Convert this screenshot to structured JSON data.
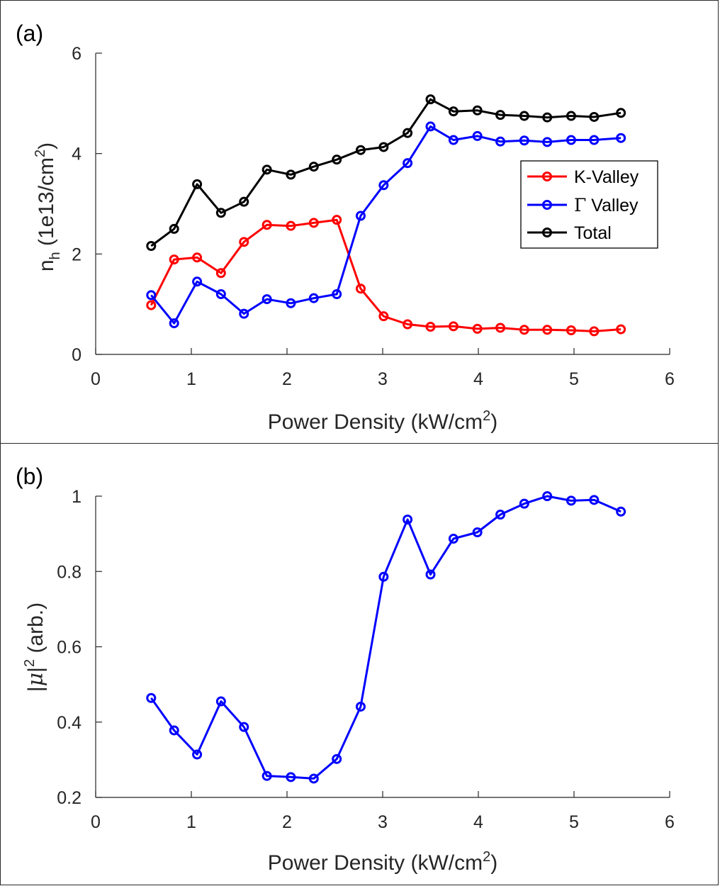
{
  "chart_data": [
    {
      "type": "line",
      "panel_label": "(a)",
      "xlabel_main": "Power Density (kW/cm",
      "xlabel_sup": "2",
      "xlabel_end": ")",
      "ylabel_main": "n",
      "ylabel_sub": "h",
      "ylabel_mid": " (1e13/cm",
      "ylabel_sup": "2",
      "ylabel_end": ")",
      "xlim": [
        0,
        6
      ],
      "ylim": [
        0,
        6
      ],
      "xticks": [
        "0",
        "1",
        "2",
        "3",
        "4",
        "5",
        "6"
      ],
      "yticks": [
        "0",
        "2",
        "4",
        "6"
      ],
      "grid": false,
      "legend_position": "right-middle",
      "x": [
        0.58,
        0.82,
        1.06,
        1.31,
        1.55,
        1.79,
        2.04,
        2.28,
        2.52,
        2.77,
        3.01,
        3.26,
        3.5,
        3.74,
        3.99,
        4.23,
        4.48,
        4.72,
        4.97,
        5.21,
        5.49
      ],
      "series": [
        {
          "name": "K-Valley",
          "color": "#ff0000",
          "values": [
            0.98,
            1.89,
            1.93,
            1.62,
            2.24,
            2.58,
            2.56,
            2.62,
            2.68,
            1.31,
            0.76,
            0.6,
            0.55,
            0.56,
            0.51,
            0.53,
            0.49,
            0.49,
            0.48,
            0.46,
            0.5
          ]
        },
        {
          "name": "Γ Valley",
          "legend_symbol": "Γ",
          "legend_rest": " Valley",
          "color": "#0000ff",
          "values": [
            1.18,
            0.62,
            1.45,
            1.2,
            0.81,
            1.1,
            1.02,
            1.12,
            1.2,
            2.76,
            3.37,
            3.81,
            4.54,
            4.27,
            4.35,
            4.24,
            4.26,
            4.23,
            4.27,
            4.27,
            4.31
          ]
        },
        {
          "name": "Total",
          "color": "#000000",
          "values": [
            2.16,
            2.5,
            3.39,
            2.82,
            3.04,
            3.68,
            3.58,
            3.74,
            3.88,
            4.07,
            4.13,
            4.41,
            5.08,
            4.84,
            4.86,
            4.77,
            4.75,
            4.72,
            4.75,
            4.73,
            4.81
          ]
        }
      ]
    },
    {
      "type": "line",
      "panel_label": "(b)",
      "xlabel_main": "Power Density (kW/cm",
      "xlabel_sup": "2",
      "xlabel_end": ")",
      "ylabel_pre": "|",
      "ylabel_sym": "μ",
      "ylabel_bar": "|",
      "ylabel_sup": "2",
      "ylabel_end": " (arb.)",
      "xlim": [
        0,
        6
      ],
      "ylim": [
        0.2,
        1.0
      ],
      "xticks": [
        "0",
        "1",
        "2",
        "3",
        "4",
        "5",
        "6"
      ],
      "yticks": [
        "0.2",
        "0.4",
        "0.6",
        "0.8",
        "1"
      ],
      "grid": false,
      "x": [
        0.58,
        0.82,
        1.06,
        1.31,
        1.55,
        1.79,
        2.04,
        2.28,
        2.52,
        2.77,
        3.01,
        3.26,
        3.5,
        3.74,
        3.99,
        4.23,
        4.48,
        4.72,
        4.97,
        5.21,
        5.49
      ],
      "series": [
        {
          "color": "#0000ff",
          "values": [
            0.464,
            0.378,
            0.314,
            0.455,
            0.387,
            0.257,
            0.254,
            0.25,
            0.302,
            0.441,
            0.786,
            0.938,
            0.792,
            0.887,
            0.904,
            0.951,
            0.98,
            1.0,
            0.988,
            0.99,
            0.959
          ]
        }
      ]
    }
  ]
}
